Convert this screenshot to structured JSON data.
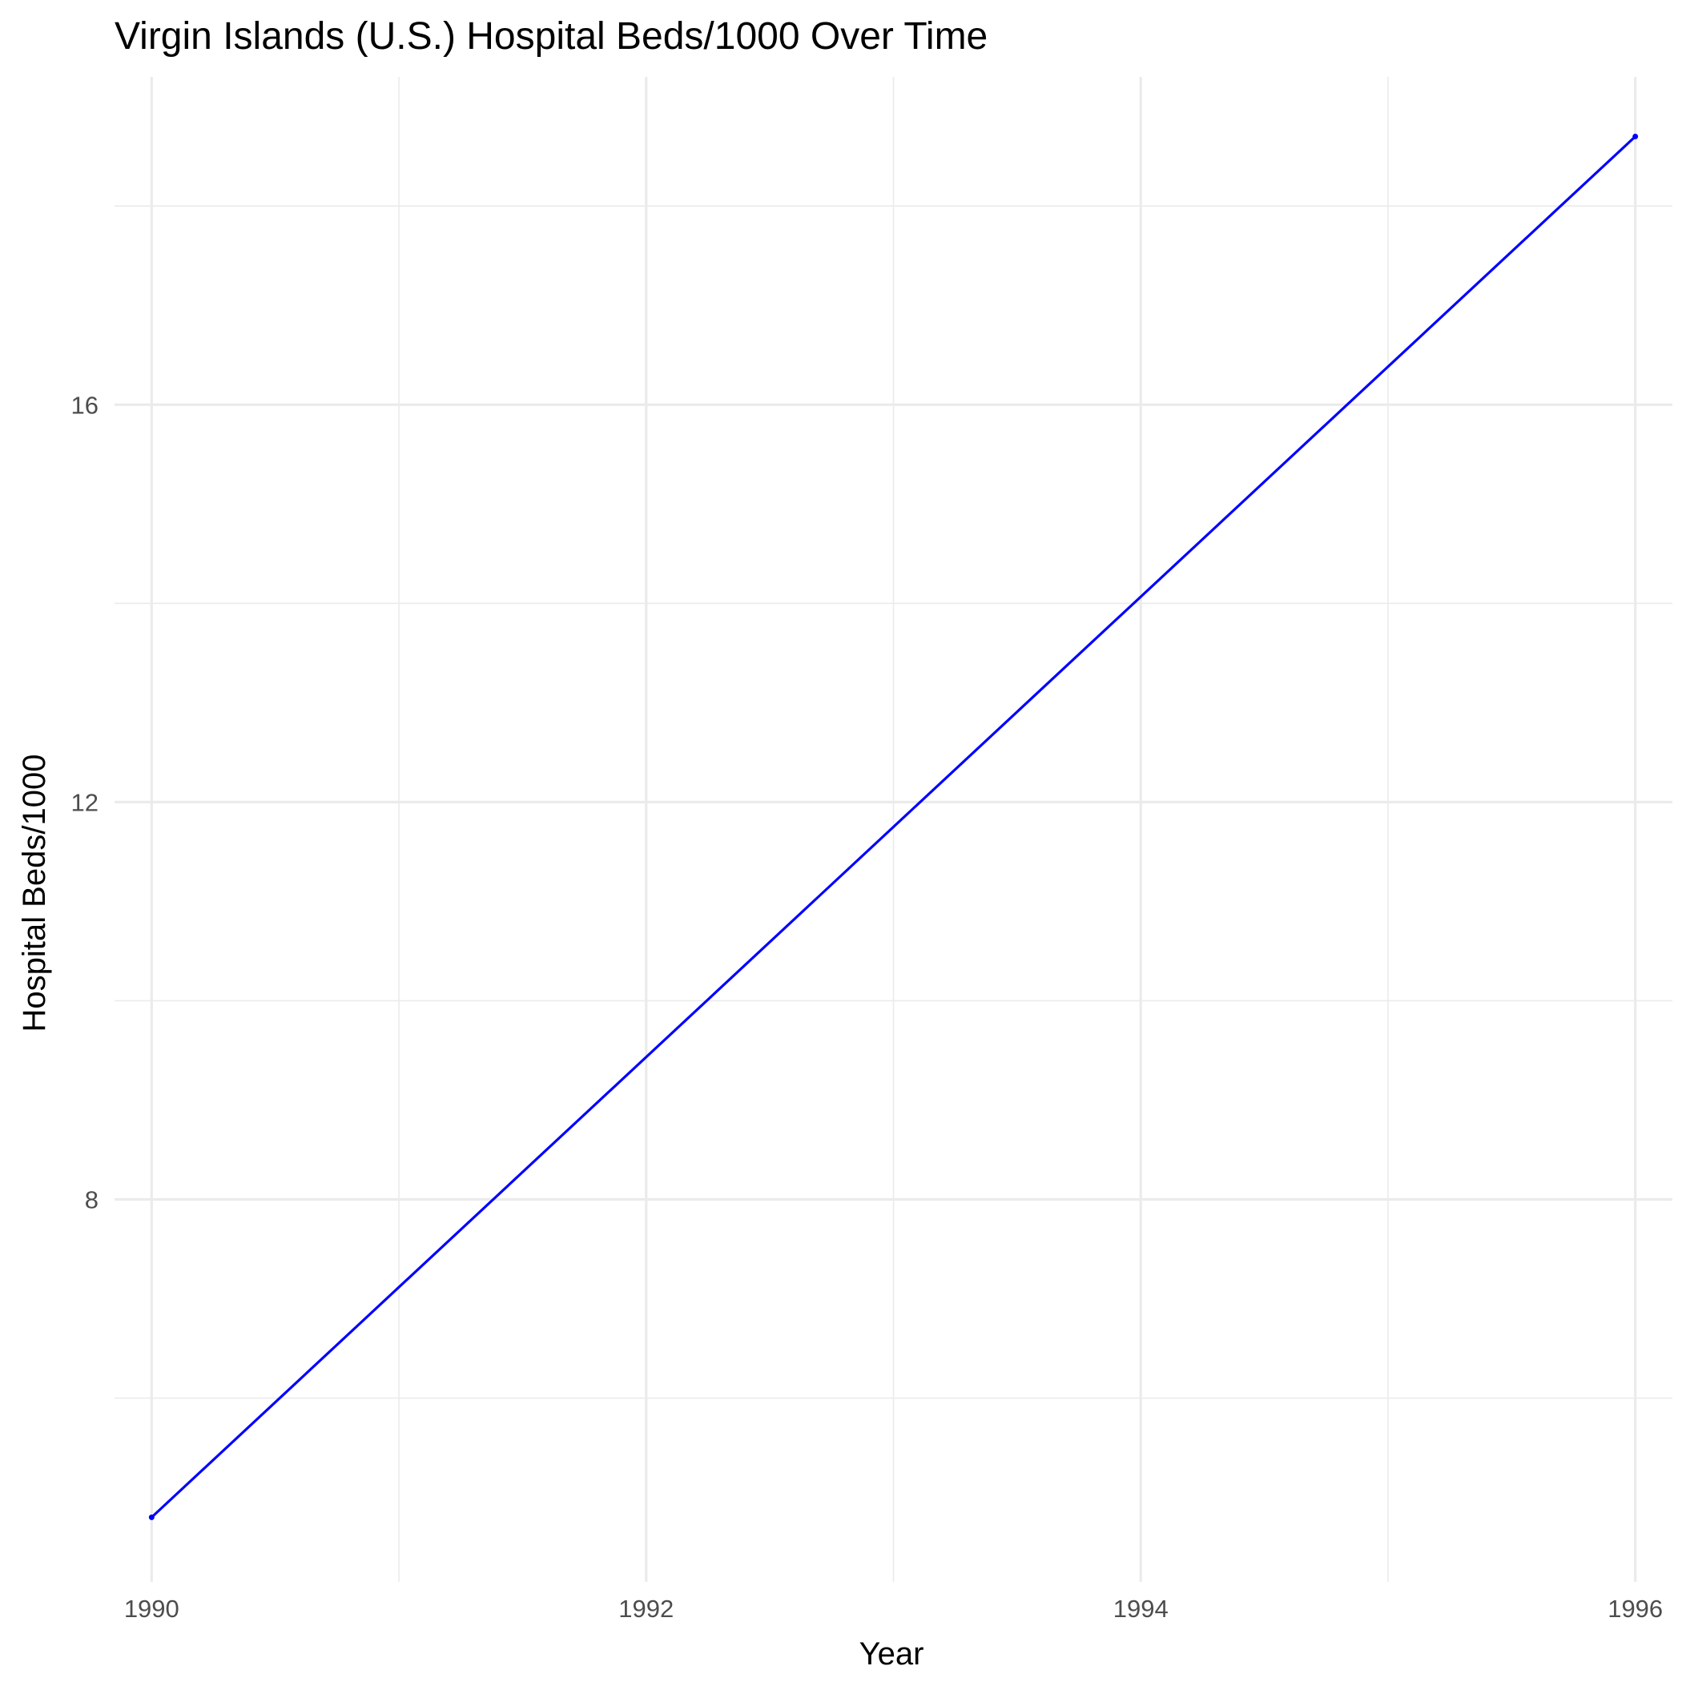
{
  "chart_data": {
    "type": "line",
    "title": "Virgin Islands (U.S.) Hospital Beds/1000 Over Time",
    "xlabel": "Year",
    "ylabel": "Hospital Beds/1000",
    "xlim": [
      1989.85,
      1996.15
    ],
    "ylim": [
      4.15,
      19.3
    ],
    "x_ticks": [
      1990,
      1992,
      1994,
      1996
    ],
    "x_minor_ticks": [
      1991,
      1993,
      1995
    ],
    "y_ticks": [
      8,
      12,
      16
    ],
    "y_minor_ticks": [
      6,
      10,
      14,
      18
    ],
    "grid": true,
    "legend": "none",
    "series": [
      {
        "color": "#0000ff",
        "x": [
          1990,
          1996
        ],
        "y": [
          4.8,
          18.7
        ]
      }
    ]
  }
}
